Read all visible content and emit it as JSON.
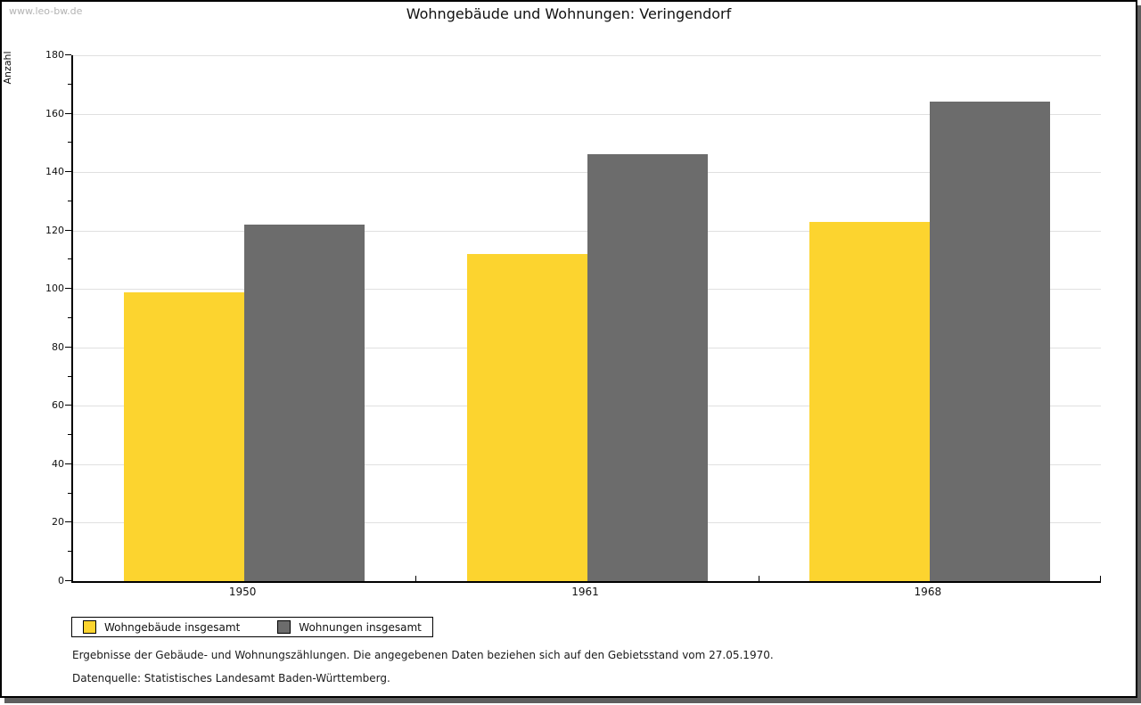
{
  "window": {
    "watermark": "www.leo-bw.de"
  },
  "title": "Wohngebäude und Wohnungen: Veringendorf",
  "chart_data": {
    "type": "bar",
    "title": "Wohngebäude und Wohnungen: Veringendorf",
    "categories": [
      "1950",
      "1961",
      "1968"
    ],
    "series": [
      {
        "name": "Wohngebäude insgesamt",
        "color": "#fcd42f",
        "values": [
          99,
          112,
          123
        ]
      },
      {
        "name": "Wohnungen insgesamt",
        "color": "#6c6c6c",
        "values": [
          122,
          146,
          164
        ]
      }
    ],
    "xlabel": "",
    "ylabel": "Anzahl",
    "ylim": [
      0,
      180
    ],
    "y_ticks": [
      0,
      20,
      40,
      60,
      80,
      100,
      120,
      140,
      160,
      180
    ],
    "y_minor_step": 10,
    "grid": true,
    "legend_position": "bottom-left"
  },
  "footer": {
    "line1": "Ergebnisse der Gebäude- und Wohnungszählungen. Die angegebenen Daten beziehen sich auf den Gebietsstand vom 27.05.1970.",
    "line2": "Datenquelle: Statistisches Landesamt Baden-Württemberg."
  },
  "colors": {
    "grid": "#e0e0e0",
    "axis": "#000000",
    "shadow": "#5e5e5e",
    "watermark": "#b3b3b3"
  }
}
